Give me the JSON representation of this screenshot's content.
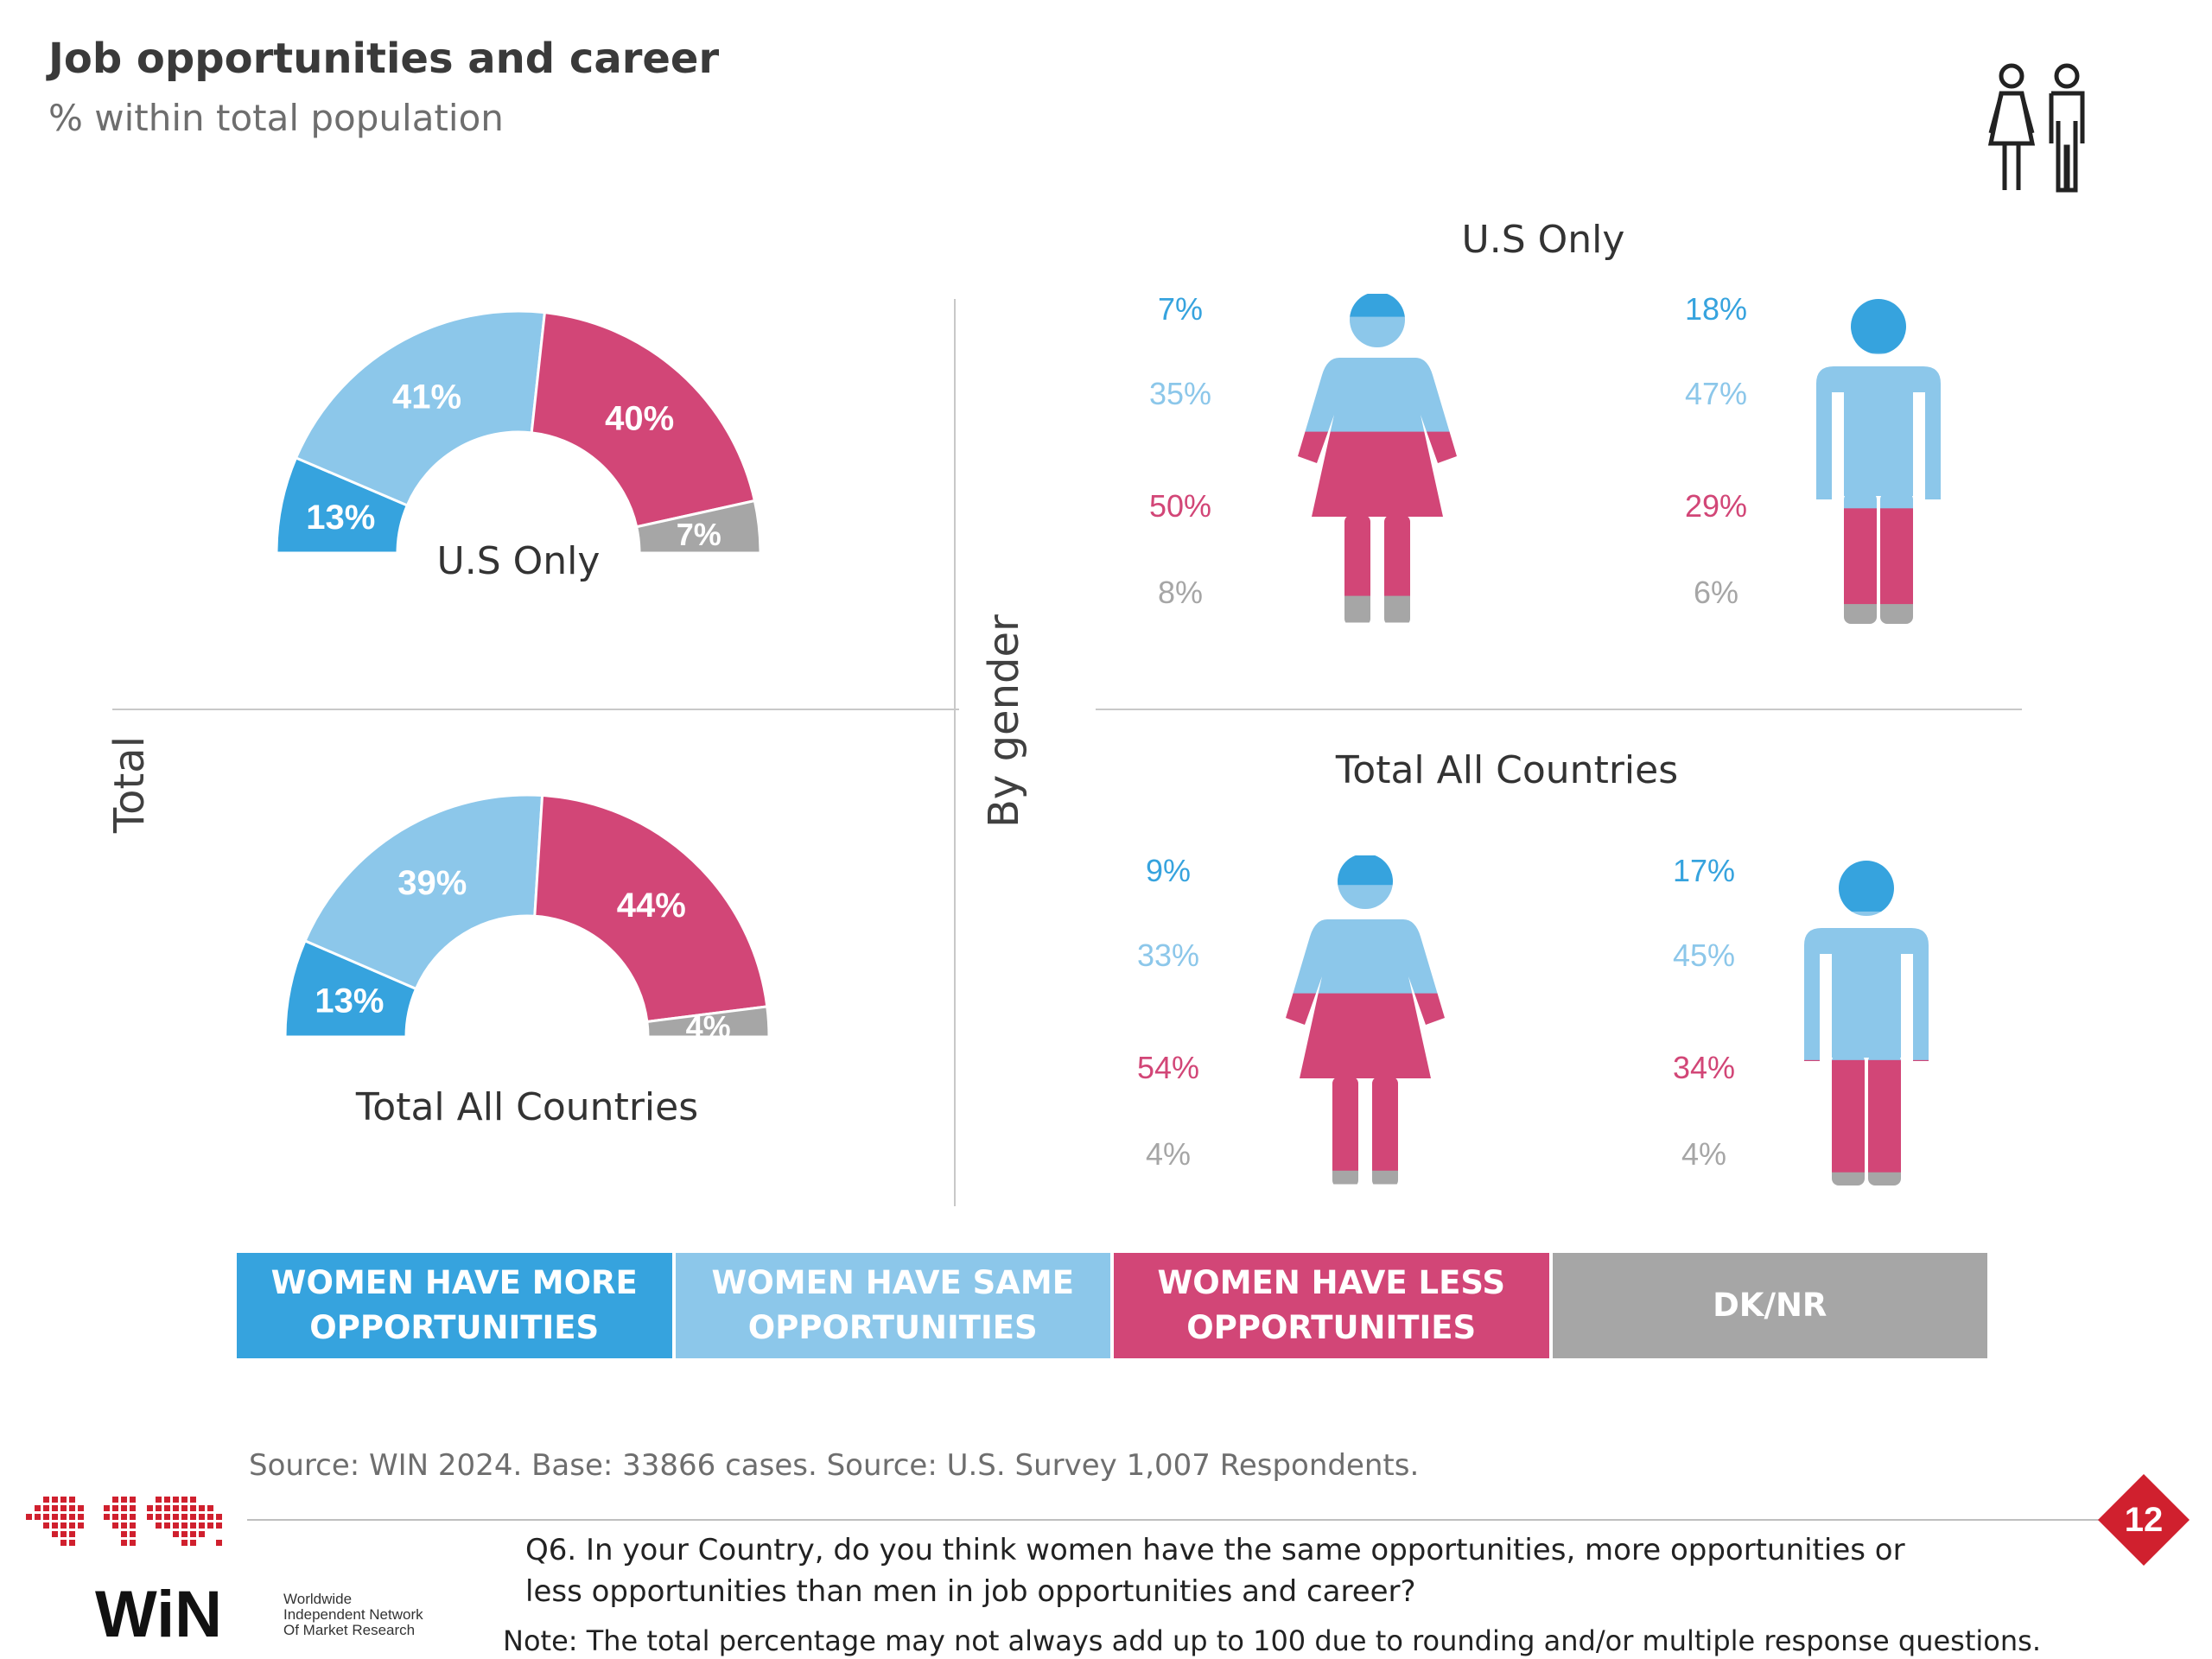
{
  "header": {
    "title": "Job opportunities and career",
    "subtitle": "% within total population"
  },
  "sections": {
    "total_label": "Total",
    "by_gender_label": "By gender",
    "us_only": "U.S Only",
    "total_all_countries": "Total All Countries"
  },
  "colors": {
    "more": "#36A3DE",
    "same": "#8CC7EA",
    "less": "#D24677",
    "dknr": "#A6A6A6"
  },
  "legend": {
    "more": "WOMEN HAVE MORE OPPORTUNITIES",
    "same": "WOMEN HAVE SAME OPPORTUNITIES",
    "less": "WOMEN HAVE LESS OPPORTUNITIES",
    "dknr": "DK/NR"
  },
  "chart_data": [
    {
      "type": "pie",
      "style": "half-donut",
      "title": "U.S Only",
      "categories": [
        "WOMEN HAVE MORE OPPORTUNITIES",
        "WOMEN HAVE SAME OPPORTUNITIES",
        "WOMEN HAVE LESS OPPORTUNITIES",
        "DK/NR"
      ],
      "values": [
        13,
        41,
        40,
        7
      ],
      "labels": [
        "13%",
        "41%",
        "40%",
        "7%"
      ]
    },
    {
      "type": "pie",
      "style": "half-donut",
      "title": "Total All Countries",
      "categories": [
        "WOMEN HAVE MORE OPPORTUNITIES",
        "WOMEN HAVE SAME OPPORTUNITIES",
        "WOMEN HAVE LESS OPPORTUNITIES",
        "DK/NR"
      ],
      "values": [
        13,
        39,
        44,
        4
      ],
      "labels": [
        "13%",
        "39%",
        "44%",
        "4%"
      ]
    },
    {
      "type": "bar",
      "style": "stacked-pictogram",
      "title": "U.S Only",
      "categories": [
        "WOMEN HAVE MORE OPPORTUNITIES",
        "WOMEN HAVE SAME OPPORTUNITIES",
        "WOMEN HAVE LESS OPPORTUNITIES",
        "DK/NR"
      ],
      "series": [
        {
          "gender": "female",
          "values": [
            7,
            35,
            50,
            8
          ],
          "labels": [
            "7%",
            "35%",
            "50%",
            "8%"
          ]
        },
        {
          "gender": "male",
          "values": [
            18,
            47,
            29,
            6
          ],
          "labels": [
            "18%",
            "47%",
            "29%",
            "6%"
          ]
        }
      ]
    },
    {
      "type": "bar",
      "style": "stacked-pictogram",
      "title": "Total All Countries",
      "categories": [
        "WOMEN HAVE MORE OPPORTUNITIES",
        "WOMEN HAVE SAME OPPORTUNITIES",
        "WOMEN HAVE LESS OPPORTUNITIES",
        "DK/NR"
      ],
      "series": [
        {
          "gender": "female",
          "values": [
            9,
            33,
            54,
            4
          ],
          "labels": [
            "9%",
            "33%",
            "54%",
            "4%"
          ]
        },
        {
          "gender": "male",
          "values": [
            17,
            45,
            34,
            4
          ],
          "labels": [
            "17%",
            "45%",
            "34%",
            "4%"
          ]
        }
      ]
    }
  ],
  "footer": {
    "source": "Source: WIN 2024. Base: 33866 cases. Source: U.S. Survey 1,007 Respondents.",
    "question": "Q6. In your Country, do you think women have the same opportunities, more opportunities or less opportunities than men in job opportunities and career?",
    "note": "Note: The total percentage may not always add up to 100 due to rounding and/or multiple response questions.",
    "page_number": "12",
    "logo_text": "WiN",
    "logo_tagline": [
      "Worldwide",
      "Independent Network",
      "Of Market Research"
    ]
  }
}
